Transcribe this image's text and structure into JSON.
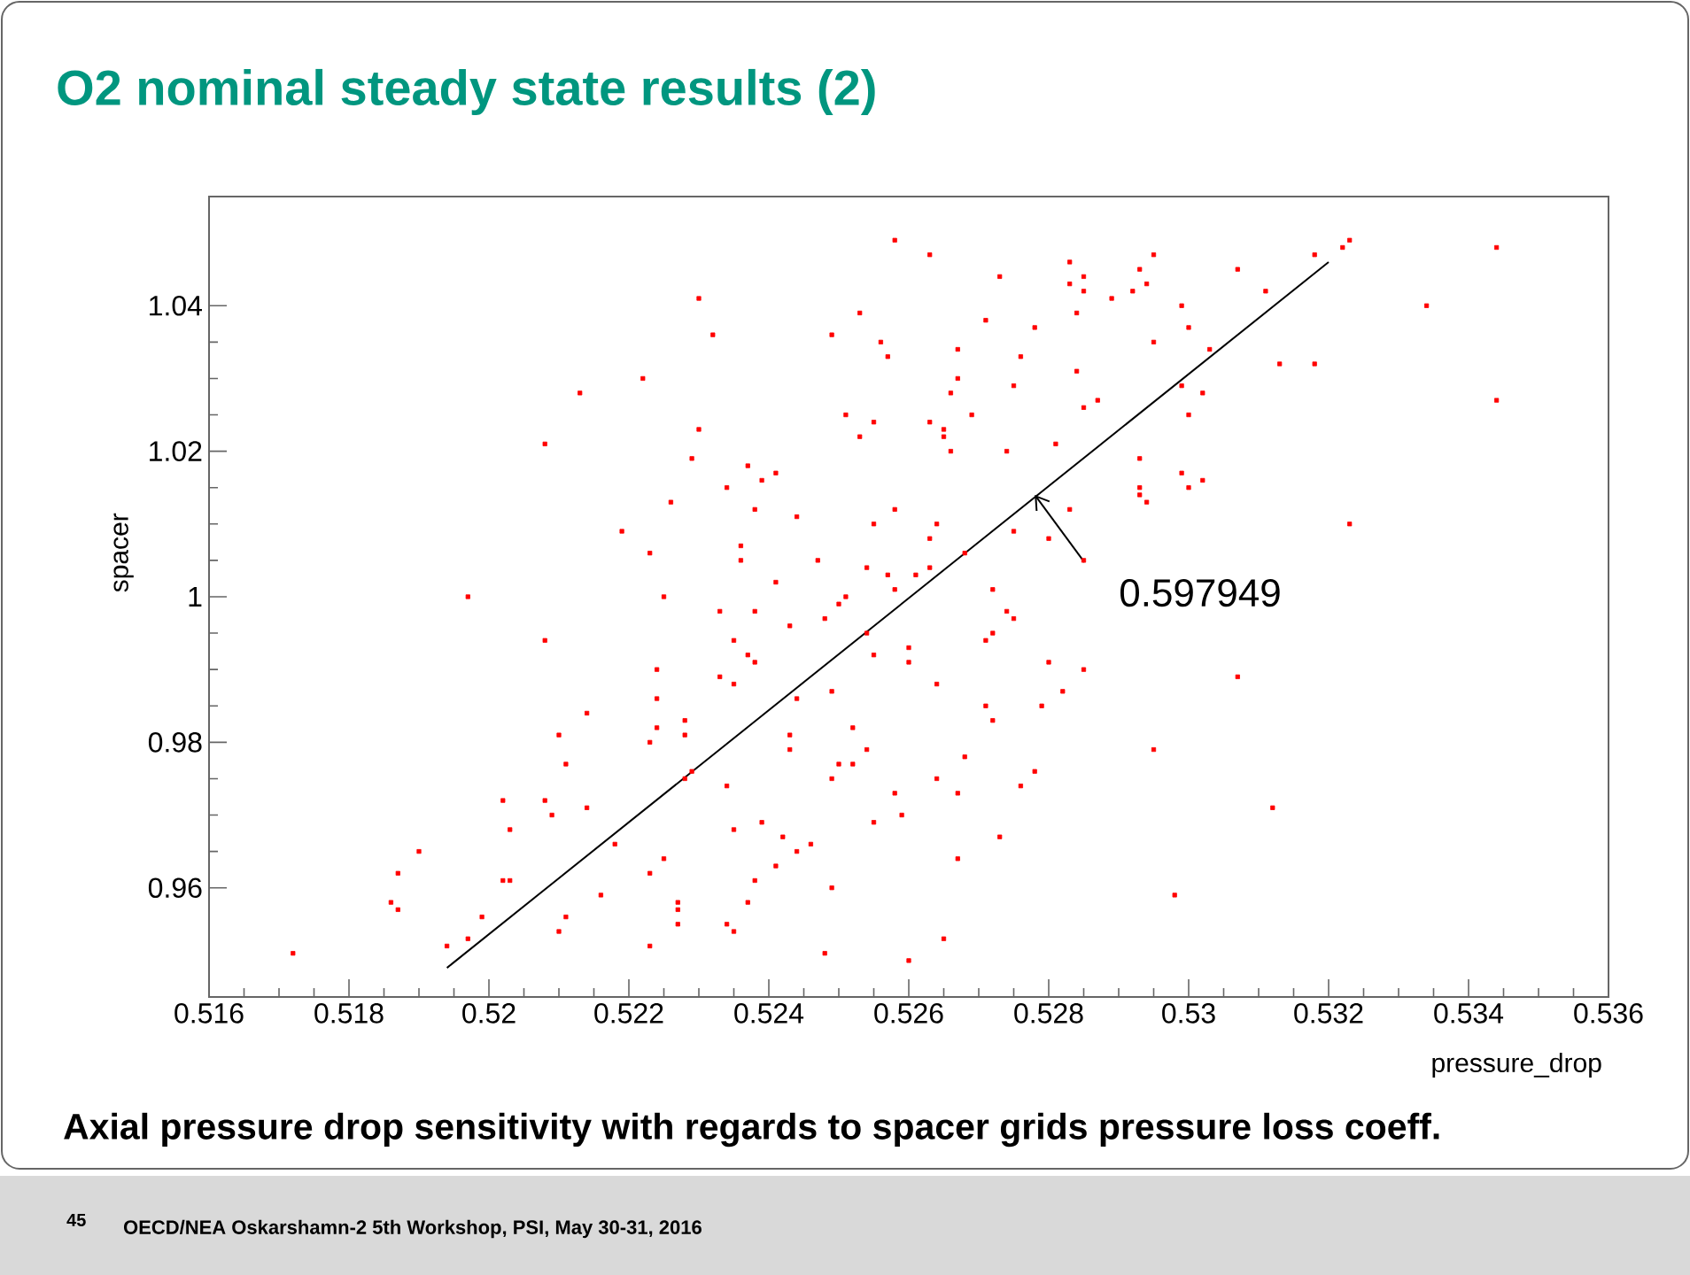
{
  "chart_data": {
    "type": "scatter",
    "title": "O2 nominal steady state results (2)",
    "xlabel": "pressure_drop",
    "ylabel": "spacer",
    "annotations": [
      "Axial pressure drop sensitivity with regards to spacer grids pressure loss coeff.",
      "45",
      "OECD/NEA Oskarshamn-2 5th Workshop, PSI, May 30-31, 2016",
      {
        "text": "0.597949",
        "x": 0.5278,
        "y": 1.014
      }
    ],
    "xlim": [
      0.516,
      0.536
    ],
    "ylim": [
      0.945,
      1.055
    ],
    "xticks": [
      0.516,
      0.518,
      0.52,
      0.522,
      0.524,
      0.526,
      0.528,
      0.53,
      0.532,
      0.534,
      0.536
    ],
    "yticks": [
      0.96,
      0.98,
      1,
      1.02,
      1.04
    ],
    "marker": "square",
    "series": [
      {
        "color": "#ff0000",
        "x": [
          0.523,
          0.5232,
          0.5249,
          0.5222,
          0.5213,
          0.5251,
          0.523,
          0.5208,
          0.5229,
          0.5237,
          0.5241,
          0.5239,
          0.5234,
          0.5226,
          0.5238,
          0.5244,
          0.5219,
          0.5223,
          0.5236,
          0.5236,
          0.5247,
          0.5241,
          0.5258,
          0.5263,
          0.5273,
          0.5283,
          0.5285,
          0.5283,
          0.5285,
          0.5295,
          0.5293,
          0.5294,
          0.5292,
          0.5307,
          0.5318,
          0.5322,
          0.5323,
          0.5344,
          0.5311,
          0.5334,
          0.5253,
          0.5271,
          0.5289,
          0.5299,
          0.5284,
          0.53,
          0.5278,
          0.5256,
          0.5257,
          0.5267,
          0.5295,
          0.5303,
          0.5276,
          0.5284,
          0.5313,
          0.5318,
          0.5267,
          0.5275,
          0.5266,
          0.5299,
          0.5302,
          0.5287,
          0.5285,
          0.5344,
          0.53,
          0.5269,
          0.5255,
          0.5263,
          0.5265,
          0.5265,
          0.5253,
          0.5281,
          0.5266,
          0.5274,
          0.5293,
          0.5299,
          0.5302,
          0.53,
          0.5293,
          0.5293,
          0.5294,
          0.5283,
          0.5255,
          0.5258,
          0.5264,
          0.5263,
          0.5275,
          0.528,
          0.5268,
          0.5285,
          0.5254,
          0.5257,
          0.5261,
          0.5263,
          0.5258,
          0.5323,
          0.5197,
          0.5225,
          0.5233,
          0.5238,
          0.5243,
          0.5248,
          0.525,
          0.5251,
          0.5208,
          0.5235,
          0.5237,
          0.5238,
          0.5224,
          0.5233,
          0.5235,
          0.5244,
          0.5249,
          0.5224,
          0.5214,
          0.5228,
          0.5224,
          0.5228,
          0.521,
          0.5223,
          0.5243,
          0.5243,
          0.5211,
          0.525,
          0.5228,
          0.5229,
          0.5249,
          0.5202,
          0.5208,
          0.5234,
          0.5209,
          0.5214,
          0.5203,
          0.519,
          0.5239,
          0.5235,
          0.5242,
          0.5246,
          0.5244,
          0.5218,
          0.5225,
          0.5241,
          0.5187,
          0.5223,
          0.5202,
          0.5203,
          0.5238,
          0.5249,
          0.5186,
          0.5187,
          0.5216,
          0.5227,
          0.5237,
          0.5227,
          0.5199,
          0.5211,
          0.5234,
          0.5227,
          0.521,
          0.5235,
          0.5197,
          0.5194,
          0.5223,
          0.5248,
          0.5172,
          0.5272,
          0.5274,
          0.5275,
          0.5271,
          0.5272,
          0.5254,
          0.5255,
          0.526,
          0.526,
          0.528,
          0.5285,
          0.5264,
          0.5282,
          0.5307,
          0.5271,
          0.5279,
          0.5272,
          0.5252,
          0.5252,
          0.5254,
          0.5268,
          0.5295,
          0.5264,
          0.5278,
          0.5267,
          0.5276,
          0.5258,
          0.5259,
          0.5255,
          0.5312,
          0.5273,
          0.5267,
          0.5298,
          0.5265,
          0.526
        ],
        "values": [
          1.041,
          1.036,
          1.036,
          1.03,
          1.028,
          1.025,
          1.023,
          1.021,
          1.019,
          1.018,
          1.017,
          1.016,
          1.015,
          1.013,
          1.012,
          1.011,
          1.009,
          1.006,
          1.007,
          1.005,
          1.005,
          1.002,
          1.049,
          1.047,
          1.044,
          1.046,
          1.044,
          1.043,
          1.042,
          1.047,
          1.045,
          1.043,
          1.042,
          1.045,
          1.047,
          1.048,
          1.049,
          1.048,
          1.042,
          1.04,
          1.039,
          1.038,
          1.041,
          1.04,
          1.039,
          1.037,
          1.037,
          1.035,
          1.033,
          1.034,
          1.035,
          1.034,
          1.033,
          1.031,
          1.032,
          1.032,
          1.03,
          1.029,
          1.028,
          1.029,
          1.028,
          1.027,
          1.026,
          1.027,
          1.025,
          1.025,
          1.024,
          1.024,
          1.023,
          1.022,
          1.022,
          1.021,
          1.02,
          1.02,
          1.019,
          1.017,
          1.016,
          1.015,
          1.015,
          1.014,
          1.013,
          1.012,
          1.01,
          1.012,
          1.01,
          1.008,
          1.009,
          1.008,
          1.006,
          1.005,
          1.004,
          1.003,
          1.003,
          1.004,
          1.001,
          1.01,
          1.0,
          1.0,
          0.998,
          0.998,
          0.996,
          0.997,
          0.999,
          1.0,
          0.994,
          0.994,
          0.992,
          0.991,
          0.99,
          0.989,
          0.988,
          0.986,
          0.987,
          0.986,
          0.984,
          0.983,
          0.982,
          0.981,
          0.981,
          0.98,
          0.981,
          0.979,
          0.977,
          0.977,
          0.975,
          0.976,
          0.975,
          0.972,
          0.972,
          0.974,
          0.97,
          0.971,
          0.968,
          0.965,
          0.969,
          0.968,
          0.967,
          0.966,
          0.965,
          0.966,
          0.964,
          0.963,
          0.962,
          0.962,
          0.961,
          0.961,
          0.961,
          0.96,
          0.958,
          0.957,
          0.959,
          0.958,
          0.958,
          0.957,
          0.956,
          0.956,
          0.955,
          0.955,
          0.954,
          0.954,
          0.953,
          0.952,
          0.952,
          0.951,
          0.951,
          1.001,
          0.998,
          0.997,
          0.994,
          0.995,
          0.995,
          0.992,
          0.993,
          0.991,
          0.991,
          0.99,
          0.988,
          0.987,
          0.989,
          0.985,
          0.985,
          0.983,
          0.982,
          0.977,
          0.979,
          0.978,
          0.979,
          0.975,
          0.976,
          0.973,
          0.974,
          0.973,
          0.97,
          0.969,
          0.971,
          0.967,
          0.964,
          0.959,
          0.953,
          0.95
        ]
      },
      {
        "type": "line",
        "marker": "none",
        "color": "#000000",
        "x": [
          0.5194,
          0.532
        ],
        "values": [
          0.949,
          1.046
        ]
      }
    ]
  }
}
